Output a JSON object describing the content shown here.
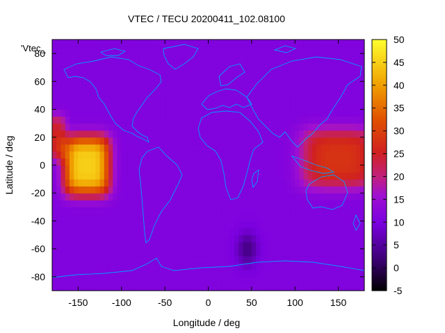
{
  "chart_data": {
    "type": "heatmap",
    "title": "VTEC / TECU 20200411_102.08100",
    "xlabel": "Longitude / deg",
    "ylabel": "Latitude / deg",
    "legend_label": "'Vtec_",
    "xlim": [
      -180,
      180
    ],
    "ylim": [
      -90,
      90
    ],
    "x_ticks": [
      -150,
      -100,
      -50,
      0,
      50,
      100,
      150
    ],
    "y_ticks": [
      -80,
      -60,
      -40,
      -20,
      0,
      20,
      40,
      60,
      80
    ],
    "colorbar": {
      "range": [
        -5,
        50
      ],
      "ticks": [
        -5,
        0,
        5,
        10,
        15,
        20,
        25,
        30,
        35,
        40,
        45,
        50
      ],
      "palette": "black-purple-red-orange-yellow"
    },
    "grid": false,
    "overlay": "continent coastlines",
    "overlay_color": "#00a0ff",
    "value_model": {
      "background": 11,
      "enhancements": [
        {
          "lon": -140,
          "lat": 0,
          "lon_halfwidth": 25,
          "lat_halfwidth": 20,
          "peak": 45
        },
        {
          "lon": 150,
          "lat": 5,
          "lon_halfwidth": 40,
          "lat_halfwidth": 20,
          "peak": 28
        },
        {
          "lon": -180,
          "lat": 20,
          "lon_halfwidth": 15,
          "lat_halfwidth": 15,
          "peak": 25
        }
      ],
      "depletion": {
        "lon": 45,
        "lat": -60,
        "radius": 12,
        "min": 3
      }
    }
  }
}
